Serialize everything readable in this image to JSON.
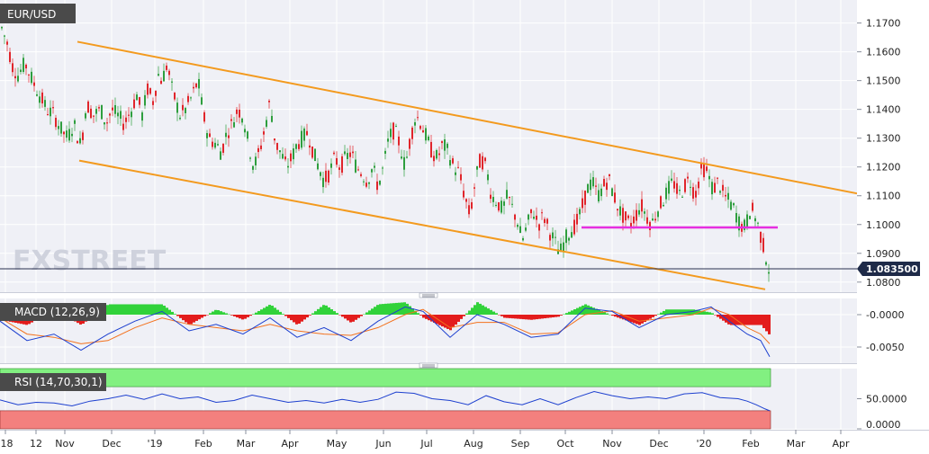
{
  "chart_data": [
    {
      "type": "candlestick",
      "title": "EUR/USD",
      "watermark": "FXSTREET",
      "last_price_label": "1.083500",
      "y_ticks": [
        "1.1700",
        "1.1600",
        "1.1500",
        "1.1400",
        "1.1300",
        "1.1200",
        "1.1100",
        "1.1000",
        "1.0900",
        "1.0800"
      ],
      "ylim": [
        1.0765,
        1.178
      ],
      "price_path": [
        [
          0,
          1.17
        ],
        [
          8,
          1.163
        ],
        [
          14,
          1.155
        ],
        [
          20,
          1.152
        ],
        [
          28,
          1.156
        ],
        [
          36,
          1.15
        ],
        [
          44,
          1.145
        ],
        [
          52,
          1.14
        ],
        [
          60,
          1.138
        ],
        [
          68,
          1.133
        ],
        [
          75,
          1.13
        ],
        [
          82,
          1.135
        ],
        [
          90,
          1.127
        ],
        [
          96,
          1.142
        ],
        [
          104,
          1.138
        ],
        [
          112,
          1.14
        ],
        [
          118,
          1.135
        ],
        [
          124,
          1.14
        ],
        [
          130,
          1.138
        ],
        [
          138,
          1.135
        ],
        [
          146,
          1.14
        ],
        [
          152,
          1.145
        ],
        [
          158,
          1.138
        ],
        [
          164,
          1.147
        ],
        [
          170,
          1.143
        ],
        [
          176,
          1.152
        ],
        [
          180,
          1.15
        ],
        [
          186,
          1.156
        ],
        [
          190,
          1.148
        ],
        [
          196,
          1.142
        ],
        [
          200,
          1.138
        ],
        [
          206,
          1.14
        ],
        [
          214,
          1.145
        ],
        [
          220,
          1.15
        ],
        [
          226,
          1.138
        ],
        [
          232,
          1.13
        ],
        [
          240,
          1.128
        ],
        [
          246,
          1.125
        ],
        [
          252,
          1.132
        ],
        [
          258,
          1.135
        ],
        [
          264,
          1.14
        ],
        [
          270,
          1.138
        ],
        [
          276,
          1.128
        ],
        [
          282,
          1.12
        ],
        [
          288,
          1.125
        ],
        [
          294,
          1.133
        ],
        [
          300,
          1.143
        ],
        [
          306,
          1.128
        ],
        [
          312,
          1.125
        ],
        [
          318,
          1.12
        ],
        [
          324,
          1.123
        ],
        [
          330,
          1.128
        ],
        [
          336,
          1.13
        ],
        [
          342,
          1.132
        ],
        [
          348,
          1.125
        ],
        [
          354,
          1.12
        ],
        [
          360,
          1.115
        ],
        [
          366,
          1.118
        ],
        [
          372,
          1.123
        ],
        [
          378,
          1.12
        ],
        [
          384,
          1.123
        ],
        [
          390,
          1.125
        ],
        [
          396,
          1.12
        ],
        [
          402,
          1.118
        ],
        [
          408,
          1.115
        ],
        [
          414,
          1.12
        ],
        [
          420,
          1.113
        ],
        [
          426,
          1.12
        ],
        [
          432,
          1.13
        ],
        [
          438,
          1.133
        ],
        [
          444,
          1.128
        ],
        [
          450,
          1.12
        ],
        [
          456,
          1.13
        ],
        [
          462,
          1.138
        ],
        [
          468,
          1.135
        ],
        [
          474,
          1.13
        ],
        [
          480,
          1.125
        ],
        [
          486,
          1.123
        ],
        [
          492,
          1.128
        ],
        [
          498,
          1.125
        ],
        [
          504,
          1.12
        ],
        [
          510,
          1.118
        ],
        [
          516,
          1.11
        ],
        [
          522,
          1.103
        ],
        [
          528,
          1.115
        ],
        [
          534,
          1.123
        ],
        [
          540,
          1.12
        ],
        [
          546,
          1.11
        ],
        [
          552,
          1.108
        ],
        [
          558,
          1.105
        ],
        [
          564,
          1.11
        ],
        [
          570,
          1.105
        ],
        [
          576,
          1.1
        ],
        [
          580,
          1.094
        ],
        [
          586,
          1.1
        ],
        [
          592,
          1.105
        ],
        [
          598,
          1.1
        ],
        [
          604,
          1.103
        ],
        [
          610,
          1.098
        ],
        [
          616,
          1.094
        ],
        [
          622,
          1.09
        ],
        [
          628,
          1.095
        ],
        [
          634,
          1.098
        ],
        [
          640,
          1.1
        ],
        [
          646,
          1.105
        ],
        [
          652,
          1.112
        ],
        [
          658,
          1.115
        ],
        [
          664,
          1.11
        ],
        [
          670,
          1.113
        ],
        [
          676,
          1.116
        ],
        [
          682,
          1.11
        ],
        [
          688,
          1.105
        ],
        [
          694,
          1.102
        ],
        [
          700,
          1.1
        ],
        [
          706,
          1.103
        ],
        [
          712,
          1.107
        ],
        [
          718,
          1.103
        ],
        [
          724,
          1.1
        ],
        [
          730,
          1.105
        ],
        [
          736,
          1.108
        ],
        [
          742,
          1.112
        ],
        [
          748,
          1.115
        ],
        [
          754,
          1.11
        ],
        [
          760,
          1.113
        ],
        [
          766,
          1.116
        ],
        [
          772,
          1.11
        ],
        [
          776,
          1.115
        ],
        [
          780,
          1.12
        ],
        [
          786,
          1.118
        ],
        [
          792,
          1.112
        ],
        [
          798,
          1.115
        ],
        [
          804,
          1.11
        ],
        [
          810,
          1.108
        ],
        [
          816,
          1.105
        ],
        [
          822,
          1.1
        ],
        [
          828,
          1.099
        ],
        [
          834,
          1.106
        ],
        [
          840,
          1.102
        ],
        [
          846,
          1.095
        ],
        [
          850,
          1.09
        ],
        [
          855,
          1.0835
        ]
      ],
      "channel_lines": [
        {
          "role": "upper",
          "color": "#f39a1e",
          "from": [
            86,
            1.1635
          ],
          "to": [
            952,
            1.1108
          ]
        },
        {
          "role": "lower",
          "color": "#f39a1e",
          "from": [
            88,
            1.1222
          ],
          "to": [
            850,
            1.0775
          ]
        }
      ],
      "support_line": {
        "color": "#e62fe0",
        "from": [
          646,
          1.099
        ],
        "to": [
          864,
          1.099
        ]
      },
      "colors": {
        "up": "#2e9e3e",
        "down": "#e0252b",
        "wick": "#555555",
        "background": "#eff0f6",
        "grid": "#ffffff"
      }
    },
    {
      "type": "histogram_line",
      "title": "MACD (12,26,9)",
      "y_ticks": [
        "-0.0000",
        "-0.0050"
      ],
      "ylim": [
        -0.0075,
        0.0025
      ],
      "macd": [
        [
          0,
          -0.001
        ],
        [
          30,
          -0.004
        ],
        [
          60,
          -0.003
        ],
        [
          90,
          -0.0055
        ],
        [
          120,
          -0.003
        ],
        [
          150,
          -0.001
        ],
        [
          180,
          0.0005
        ],
        [
          210,
          -0.0025
        ],
        [
          240,
          -0.0015
        ],
        [
          270,
          -0.003
        ],
        [
          300,
          -0.0005
        ],
        [
          330,
          -0.0035
        ],
        [
          360,
          -0.002
        ],
        [
          390,
          -0.004
        ],
        [
          420,
          -0.001
        ],
        [
          450,
          0.0012
        ],
        [
          470,
          0.0005
        ],
        [
          500,
          -0.0035
        ],
        [
          530,
          0.0
        ],
        [
          560,
          -0.0015
        ],
        [
          590,
          -0.0035
        ],
        [
          620,
          -0.003
        ],
        [
          650,
          0.001
        ],
        [
          680,
          0.0005
        ],
        [
          710,
          -0.002
        ],
        [
          740,
          0.0
        ],
        [
          770,
          0.0005
        ],
        [
          790,
          0.0012
        ],
        [
          810,
          -0.001
        ],
        [
          830,
          -0.003
        ],
        [
          845,
          -0.004
        ],
        [
          855,
          -0.0065
        ]
      ],
      "signal": [
        [
          0,
          -0.0005
        ],
        [
          30,
          -0.003
        ],
        [
          60,
          -0.0035
        ],
        [
          90,
          -0.0045
        ],
        [
          120,
          -0.004
        ],
        [
          150,
          -0.002
        ],
        [
          180,
          -0.0005
        ],
        [
          210,
          -0.0015
        ],
        [
          240,
          -0.002
        ],
        [
          270,
          -0.0025
        ],
        [
          300,
          -0.0015
        ],
        [
          330,
          -0.0025
        ],
        [
          360,
          -0.003
        ],
        [
          390,
          -0.0032
        ],
        [
          420,
          -0.002
        ],
        [
          450,
          0.0
        ],
        [
          470,
          0.0008
        ],
        [
          500,
          -0.002
        ],
        [
          530,
          -0.0012
        ],
        [
          560,
          -0.0012
        ],
        [
          590,
          -0.003
        ],
        [
          620,
          -0.0028
        ],
        [
          650,
          0.0
        ],
        [
          680,
          0.0006
        ],
        [
          710,
          -0.001
        ],
        [
          740,
          -0.0005
        ],
        [
          770,
          0.0
        ],
        [
          790,
          0.001
        ],
        [
          810,
          0.0
        ],
        [
          830,
          -0.002
        ],
        [
          845,
          -0.003
        ],
        [
          855,
          -0.0045
        ]
      ],
      "colors": {
        "macd": "#1c3fcf",
        "signal": "#f3721e",
        "hist_up": "#31d23a",
        "hist_down": "#e31c1c"
      }
    },
    {
      "type": "line",
      "title": "RSI (14,70,30,1)",
      "y_ticks": [
        "50.0000",
        "0.0000"
      ],
      "ylim": [
        0,
        100
      ],
      "overbought": 70,
      "oversold": 30,
      "rsi": [
        [
          0,
          48
        ],
        [
          20,
          40
        ],
        [
          40,
          44
        ],
        [
          60,
          43
        ],
        [
          80,
          38
        ],
        [
          100,
          46
        ],
        [
          120,
          50
        ],
        [
          140,
          56
        ],
        [
          160,
          49
        ],
        [
          180,
          58
        ],
        [
          200,
          50
        ],
        [
          220,
          53
        ],
        [
          240,
          44
        ],
        [
          260,
          47
        ],
        [
          280,
          56
        ],
        [
          300,
          50
        ],
        [
          320,
          44
        ],
        [
          340,
          47
        ],
        [
          360,
          43
        ],
        [
          380,
          49
        ],
        [
          400,
          44
        ],
        [
          420,
          49
        ],
        [
          440,
          61
        ],
        [
          460,
          59
        ],
        [
          480,
          50
        ],
        [
          500,
          47
        ],
        [
          520,
          40
        ],
        [
          540,
          55
        ],
        [
          560,
          45
        ],
        [
          580,
          40
        ],
        [
          600,
          50
        ],
        [
          620,
          40
        ],
        [
          640,
          52
        ],
        [
          660,
          62
        ],
        [
          680,
          55
        ],
        [
          700,
          50
        ],
        [
          720,
          53
        ],
        [
          740,
          50
        ],
        [
          760,
          58
        ],
        [
          780,
          60
        ],
        [
          800,
          52
        ],
        [
          820,
          50
        ],
        [
          830,
          46
        ],
        [
          840,
          40
        ],
        [
          850,
          33
        ],
        [
          855,
          30
        ]
      ],
      "colors": {
        "line": "#1c3fcf",
        "overbought_zone": "#82f081",
        "oversold_zone": "#f3807e"
      }
    }
  ],
  "x_axis": {
    "ticks": [
      "'18",
      "12",
      "Nov",
      "Dec",
      "'19",
      "Feb",
      "Mar",
      "Apr",
      "May",
      "Jun",
      "Jul",
      "Aug",
      "Sep",
      "Oct",
      "Nov",
      "Dec",
      "'20",
      "Feb",
      "Mar",
      "Apr"
    ]
  }
}
